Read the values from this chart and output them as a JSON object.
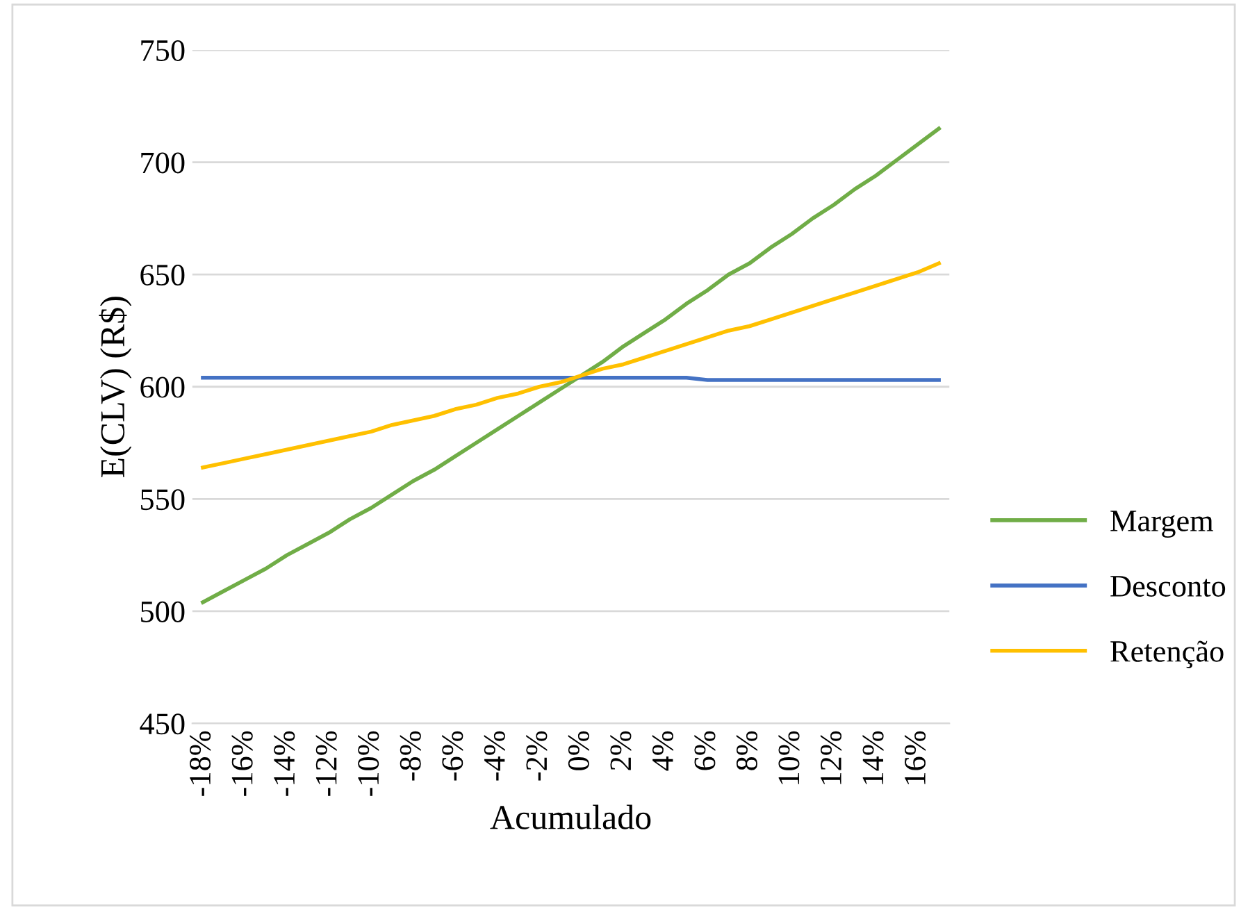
{
  "chart_data": {
    "type": "line",
    "xlabel": "Acumulado",
    "ylabel": "E(CLV) (R$)",
    "categories": [
      "-18%",
      null,
      "-16%",
      null,
      "-14%",
      null,
      "-12%",
      null,
      "-10%",
      null,
      "-8%",
      null,
      "-6%",
      null,
      "-4%",
      null,
      "-2%",
      null,
      "0%",
      null,
      "2%",
      null,
      "4%",
      null,
      "6%",
      null,
      "8%",
      null,
      "10%",
      null,
      "12%",
      null,
      "14%",
      null,
      "16%",
      null
    ],
    "series": [
      {
        "name": "Margem",
        "color": "#70ad47",
        "values": [
          504,
          509,
          514,
          519,
          525,
          530,
          535,
          541,
          546,
          552,
          558,
          563,
          569,
          575,
          581,
          587,
          593,
          599,
          605,
          611,
          618,
          624,
          630,
          637,
          643,
          650,
          655,
          662,
          668,
          675,
          681,
          688,
          694,
          701,
          708,
          715
        ]
      },
      {
        "name": "Desconto",
        "color": "#4472c4",
        "values": [
          604,
          604,
          604,
          604,
          604,
          604,
          604,
          604,
          604,
          604,
          604,
          604,
          604,
          604,
          604,
          604,
          604,
          604,
          604,
          604,
          604,
          604,
          604,
          604,
          603,
          603,
          603,
          603,
          603,
          603,
          603,
          603,
          603,
          603,
          603,
          603
        ]
      },
      {
        "name": "Retenção",
        "color": "#ffc000",
        "values": [
          564,
          566,
          568,
          570,
          572,
          574,
          576,
          578,
          580,
          583,
          585,
          587,
          590,
          592,
          595,
          597,
          600,
          602,
          605,
          608,
          610,
          613,
          616,
          619,
          622,
          625,
          627,
          630,
          633,
          636,
          639,
          642,
          645,
          648,
          651,
          655
        ]
      }
    ],
    "ylim": [
      450,
      750
    ],
    "yticks": [
      450,
      500,
      550,
      600,
      650,
      700,
      750
    ],
    "grid": "y",
    "legend": "right",
    "marker": "none",
    "line_style": "solid"
  }
}
